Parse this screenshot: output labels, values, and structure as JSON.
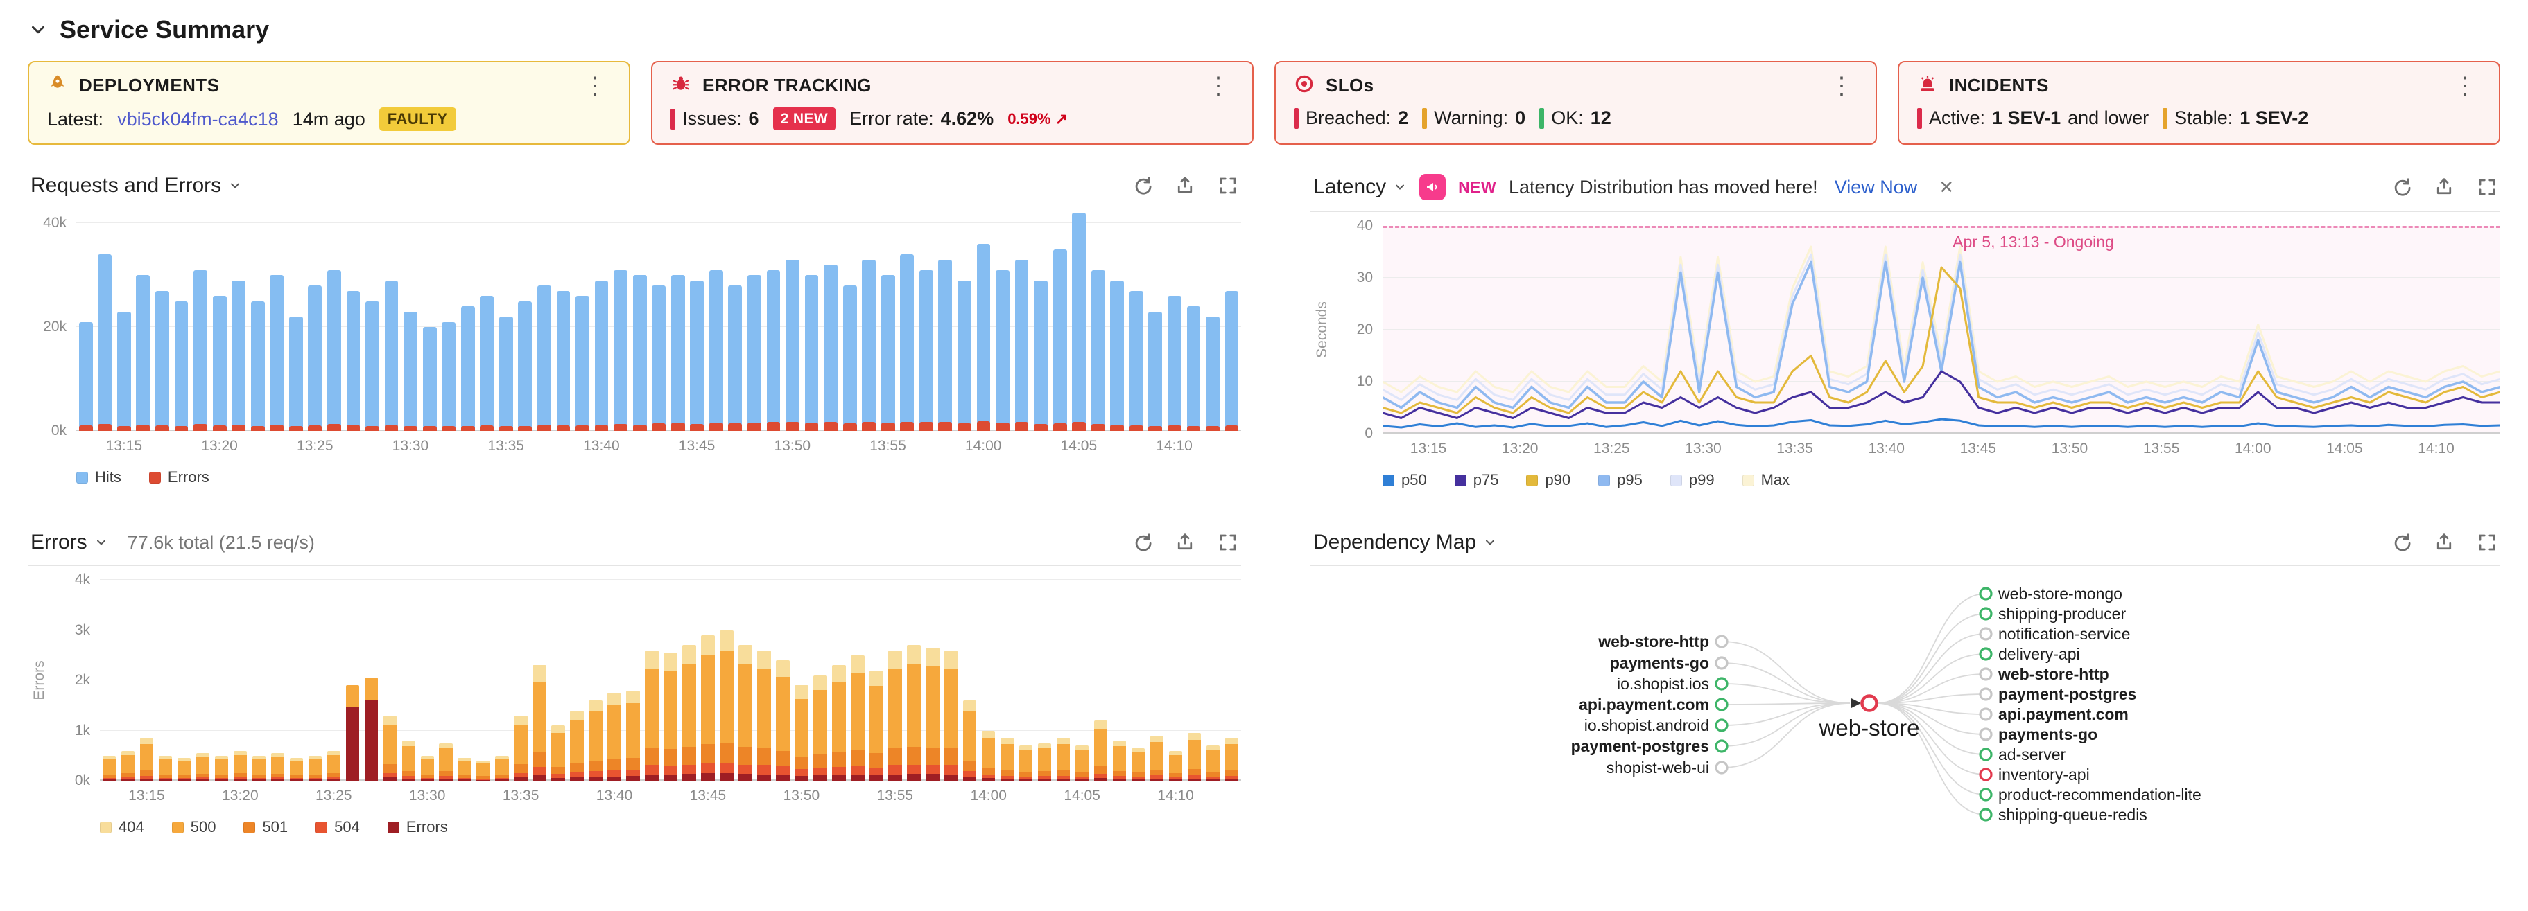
{
  "page": {
    "title": "Service Summary"
  },
  "colors": {
    "deployments_border": "#E7B93C",
    "alert_border": "#E5604C",
    "faulty_badge_bg": "#F2CB3A",
    "new_badge_bg": "#E5304C",
    "red": "#DB2B4B",
    "orange": "#E5A32C",
    "green": "#3DB568",
    "link_blue": "#2C5FCC",
    "version_purple": "#4F59CC",
    "annotation_pink": "#DD4C86"
  },
  "cards": {
    "deployments": {
      "title": "DEPLOYMENTS",
      "latest_label": "Latest:",
      "version": "vbi5ck04fm-ca4c18",
      "age": "14m ago",
      "badge": "FAULTY"
    },
    "error_tracking": {
      "title": "ERROR TRACKING",
      "issues_label": "Issues:",
      "issues": "6",
      "new_badge": "2 NEW",
      "error_rate_label": "Error rate:",
      "error_rate": "4.62%",
      "trend": "0.59% ↗"
    },
    "slos": {
      "title": "SLOs",
      "breached_label": "Breached:",
      "breached": "2",
      "warning_label": "Warning:",
      "warning": "0",
      "ok_label": "OK:",
      "ok": "12"
    },
    "incidents": {
      "title": "INCIDENTS",
      "active_label": "Active:",
      "active": "1 SEV-1",
      "active_suffix": "and lower",
      "stable_label": "Stable:",
      "stable": "1 SEV-2"
    }
  },
  "panels": {
    "requests": {
      "title": "Requests and Errors"
    },
    "latency": {
      "title": "Latency",
      "ylabel": "Seconds",
      "annotation": "Apr 5, 13:13 - Ongoing",
      "banner": {
        "new": "NEW",
        "text": "Latency Distribution has moved here!",
        "link": "View Now",
        "close": "×"
      }
    },
    "errors": {
      "title": "Errors",
      "summary": "77.6k total (21.5 req/s)",
      "ylabel": "Errors"
    },
    "depmap": {
      "title": "Dependency Map",
      "center": {
        "label": "web-store",
        "status": "error"
      },
      "status_colors": {
        "ok": "#3DB568",
        "neutral": "#C6C6C6",
        "error": "#E23A4E"
      },
      "left_nodes": [
        {
          "label": "web-store-http",
          "bold": true,
          "status": "neutral"
        },
        {
          "label": "payments-go",
          "bold": true,
          "status": "neutral"
        },
        {
          "label": "io.shopist.ios",
          "bold": false,
          "status": "ok"
        },
        {
          "label": "api.payment.com",
          "bold": true,
          "status": "ok"
        },
        {
          "label": "io.shopist.android",
          "bold": false,
          "status": "ok"
        },
        {
          "label": "payment-postgres",
          "bold": true,
          "status": "ok"
        },
        {
          "label": "shopist-web-ui",
          "bold": false,
          "status": "neutral"
        }
      ],
      "right_nodes": [
        {
          "label": "web-store-mongo",
          "bold": false,
          "status": "ok"
        },
        {
          "label": "shipping-producer",
          "bold": false,
          "status": "ok"
        },
        {
          "label": "notification-service",
          "bold": false,
          "status": "neutral"
        },
        {
          "label": "delivery-api",
          "bold": false,
          "status": "ok"
        },
        {
          "label": "web-store-http",
          "bold": true,
          "status": "neutral"
        },
        {
          "label": "payment-postgres",
          "bold": true,
          "status": "neutral"
        },
        {
          "label": "api.payment.com",
          "bold": true,
          "status": "neutral"
        },
        {
          "label": "payments-go",
          "bold": true,
          "status": "neutral"
        },
        {
          "label": "ad-server",
          "bold": false,
          "status": "ok"
        },
        {
          "label": "inventory-api",
          "bold": false,
          "status": "error"
        },
        {
          "label": "product-recommendation-lite",
          "bold": false,
          "status": "ok"
        },
        {
          "label": "shipping-queue-redis",
          "bold": false,
          "status": "ok"
        }
      ]
    }
  },
  "chart_data": [
    {
      "id": "requests",
      "type": "bar",
      "title": "Requests and Errors",
      "n": 61,
      "x_start": "13:13",
      "x_ticks": [
        "13:15",
        "13:20",
        "13:25",
        "13:30",
        "13:35",
        "13:40",
        "13:45",
        "13:50",
        "13:55",
        "14:00",
        "14:05",
        "14:10"
      ],
      "x_tick_indices": [
        2,
        7,
        12,
        17,
        22,
        27,
        32,
        37,
        42,
        47,
        52,
        57
      ],
      "ymax": 40,
      "y_ticks": [
        "0k",
        "20k",
        "40k"
      ],
      "y_tick_values": [
        0,
        20,
        40
      ],
      "unit": "k requests",
      "series": [
        {
          "name": "Hits",
          "color": "#85BDF2",
          "values": [
            21,
            34,
            23,
            30,
            27,
            25,
            31,
            26,
            29,
            25,
            30,
            22,
            28,
            31,
            27,
            25,
            29,
            23,
            20,
            21,
            24,
            26,
            22,
            25,
            28,
            27,
            26,
            29,
            31,
            30,
            28,
            30,
            29,
            31,
            28,
            30,
            31,
            33,
            30,
            32,
            28,
            33,
            30,
            34,
            31,
            33,
            29,
            36,
            31,
            33,
            29,
            35,
            42,
            31,
            29,
            27,
            23,
            26,
            24,
            22,
            27
          ]
        },
        {
          "name": "Errors",
          "color": "#DD4B32",
          "values": [
            1.1,
            1.3,
            1.0,
            1.2,
            1.1,
            1.0,
            1.3,
            1.1,
            1.2,
            1.0,
            1.2,
            0.9,
            1.1,
            1.3,
            1.2,
            1.0,
            1.2,
            1.0,
            0.9,
            0.9,
            1.0,
            1.1,
            0.9,
            1.0,
            1.2,
            1.1,
            1.1,
            1.2,
            1.3,
            1.2,
            1.5,
            1.6,
            1.4,
            1.6,
            1.5,
            1.6,
            1.7,
            1.8,
            1.6,
            1.7,
            1.5,
            1.8,
            1.6,
            1.8,
            1.7,
            1.8,
            1.5,
            1.9,
            1.6,
            1.7,
            1.4,
            1.5,
            1.8,
            1.3,
            1.2,
            1.1,
            1.0,
            1.1,
            1.0,
            0.9,
            1.1
          ]
        }
      ]
    },
    {
      "id": "latency",
      "type": "line",
      "title": "Latency",
      "n": 61,
      "x_start": "13:13",
      "x_ticks": [
        "13:15",
        "13:20",
        "13:25",
        "13:30",
        "13:35",
        "13:40",
        "13:45",
        "13:50",
        "13:55",
        "14:00",
        "14:05",
        "14:10"
      ],
      "x_tick_indices": [
        2,
        7,
        12,
        17,
        22,
        27,
        32,
        37,
        42,
        47,
        52,
        57
      ],
      "ymax": 40,
      "ylabel": "Seconds",
      "y_ticks": [
        "0",
        "10",
        "20",
        "30",
        "40"
      ],
      "y_tick_values": [
        0,
        10,
        20,
        30,
        40
      ],
      "annotation": "Apr 5, 13:13 - Ongoing",
      "series": [
        {
          "name": "p50",
          "color": "#2F7FD6",
          "values": [
            1.5,
            1.2,
            1.8,
            1.4,
            2.0,
            1.3,
            1.6,
            1.2,
            1.9,
            1.4,
            1.5,
            2.0,
            1.3,
            1.6,
            2.2,
            1.5,
            2.5,
            1.6,
            2.4,
            1.7,
            1.4,
            1.6,
            2.3,
            2.6,
            1.6,
            1.5,
            1.8,
            2.5,
            1.8,
            2.2,
            2.8,
            2.5,
            1.6,
            1.4,
            1.5,
            1.3,
            1.5,
            1.3,
            1.5,
            1.5,
            1.3,
            1.5,
            1.3,
            1.5,
            1.3,
            1.5,
            1.4,
            2.0,
            1.5,
            1.4,
            1.3,
            1.5,
            1.6,
            1.4,
            1.7,
            1.5,
            1.4,
            1.7,
            1.8,
            1.5,
            1.6
          ]
        },
        {
          "name": "p75",
          "color": "#45309E",
          "values": [
            4,
            3,
            5,
            4,
            3,
            5,
            4,
            3,
            5,
            4,
            3,
            5,
            4,
            4,
            6,
            5,
            7,
            5,
            7,
            5,
            4,
            5,
            7,
            8,
            5,
            5,
            6,
            8,
            6,
            7,
            12,
            10,
            5,
            4,
            5,
            4,
            5,
            4,
            5,
            5,
            4,
            5,
            4,
            5,
            4,
            5,
            5,
            8,
            5,
            5,
            4,
            5,
            6,
            5,
            6,
            5,
            5,
            6,
            7,
            6,
            6
          ]
        },
        {
          "name": "p90",
          "color": "#E3B93B",
          "values": [
            5,
            4,
            6,
            5,
            4,
            7,
            5,
            4,
            7,
            5,
            4,
            7,
            5,
            5,
            8,
            6,
            12,
            6,
            12,
            7,
            6,
            6,
            12,
            15,
            7,
            6,
            8,
            14,
            8,
            13,
            32,
            28,
            7,
            6,
            6,
            5,
            6,
            5,
            6,
            6,
            5,
            6,
            5,
            6,
            5,
            6,
            6,
            12,
            7,
            6,
            5,
            6,
            7,
            6,
            8,
            7,
            6,
            8,
            9,
            7,
            8
          ]
        },
        {
          "name": "p95",
          "color": "#8FB9F0",
          "values": [
            7,
            5,
            8,
            6,
            5,
            9,
            6,
            5,
            9,
            6,
            5,
            9,
            6,
            6,
            10,
            7,
            31,
            8,
            31,
            9,
            7,
            8,
            25,
            33,
            9,
            8,
            10,
            33,
            10,
            30,
            12,
            33,
            9,
            7,
            8,
            6,
            7,
            6,
            7,
            8,
            6,
            7,
            6,
            7,
            6,
            8,
            7,
            18,
            8,
            7,
            6,
            7,
            9,
            7,
            9,
            8,
            7,
            9,
            10,
            8,
            9
          ]
        },
        {
          "name": "p99",
          "color": "#DFE5F9",
          "values": [
            8.5,
            6.5,
            9.5,
            7.5,
            6.5,
            10.5,
            7.5,
            6.5,
            10.5,
            7.5,
            6.5,
            10.5,
            7.5,
            7.5,
            11.5,
            8.5,
            32.5,
            9.5,
            32.5,
            10.5,
            8.5,
            9.5,
            26.5,
            34.5,
            10.5,
            9.5,
            11.5,
            34.5,
            11.5,
            31.5,
            13.5,
            34.5,
            10.5,
            8.5,
            9.5,
            7.5,
            8.5,
            7.5,
            8.5,
            9.5,
            7.5,
            8.5,
            7.5,
            8.5,
            7.5,
            9.5,
            8.5,
            19.5,
            9.5,
            8.5,
            7.5,
            8.5,
            10.5,
            8.5,
            10.5,
            9.5,
            8.5,
            10.5,
            11.5,
            9.5,
            10.5
          ]
        },
        {
          "name": "Max",
          "color": "#FBF3D5",
          "values": [
            10,
            8,
            11,
            9,
            8,
            12,
            9,
            8,
            12,
            9,
            8,
            12,
            9,
            9,
            13,
            10,
            34,
            11,
            34,
            12,
            10,
            11,
            28,
            36,
            12,
            11,
            13,
            36,
            13,
            33,
            15,
            36,
            12,
            10,
            11,
            9,
            10,
            9,
            10,
            11,
            9,
            10,
            9,
            10,
            9,
            11,
            10,
            21,
            11,
            10,
            9,
            10,
            12,
            10,
            12,
            11,
            10,
            12,
            13,
            11,
            12
          ]
        }
      ]
    },
    {
      "id": "errors",
      "type": "stacked-bar",
      "title": "Errors",
      "total": "77.6k total (21.5 req/s)",
      "n": 61,
      "x_start": "13:13",
      "x_ticks": [
        "13:15",
        "13:20",
        "13:25",
        "13:30",
        "13:35",
        "13:40",
        "13:45",
        "13:50",
        "13:55",
        "14:00",
        "14:05",
        "14:10"
      ],
      "x_tick_indices": [
        2,
        7,
        12,
        17,
        22,
        27,
        32,
        37,
        42,
        47,
        52,
        57
      ],
      "ymax": 4,
      "ylabel": "Errors",
      "y_ticks": [
        "0k",
        "1k",
        "2k",
        "3k",
        "4k"
      ],
      "y_tick_values": [
        0,
        1,
        2,
        3,
        4
      ],
      "legend": [
        {
          "name": "404",
          "color": "#F8DD9B"
        },
        {
          "name": "500",
          "color": "#F6A83C"
        },
        {
          "name": "501",
          "color": "#ED8527"
        },
        {
          "name": "504",
          "color": "#E85430"
        },
        {
          "name": "Errors",
          "color": "#9E1E24"
        }
      ],
      "stack": [
        {
          "name": "Errors",
          "frac": 0.05,
          "color": "#9E1E24"
        },
        {
          "name": "504",
          "frac": 0.07,
          "color": "#E85430"
        },
        {
          "name": "501",
          "frac": 0.13,
          "color": "#ED8527"
        },
        {
          "name": "500",
          "frac": 0.61,
          "color": "#F6A83C"
        },
        {
          "name": "404",
          "frac": 0.14,
          "color": "#F8DD9B"
        }
      ],
      "special_stack": [
        {
          "name": "Errors",
          "frac": 0.78,
          "color": "#9E1E24"
        },
        {
          "name": "500",
          "frac": 0.22,
          "color": "#F6A83C"
        }
      ],
      "special_indices": [
        13,
        14
      ],
      "values": [
        0.5,
        0.6,
        0.85,
        0.5,
        0.45,
        0.55,
        0.5,
        0.6,
        0.5,
        0.55,
        0.45,
        0.5,
        0.6,
        1.9,
        2.05,
        1.3,
        0.8,
        0.5,
        0.75,
        0.45,
        0.4,
        0.5,
        1.3,
        2.3,
        1.1,
        1.4,
        1.6,
        1.75,
        1.8,
        2.6,
        2.55,
        2.7,
        2.9,
        3.0,
        2.7,
        2.6,
        2.4,
        1.9,
        2.1,
        2.3,
        2.5,
        2.2,
        2.6,
        2.7,
        2.65,
        2.6,
        1.6,
        1.0,
        0.85,
        0.7,
        0.75,
        0.85,
        0.7,
        1.2,
        0.8,
        0.65,
        0.9,
        0.6,
        0.95,
        0.7,
        0.85
      ]
    }
  ]
}
